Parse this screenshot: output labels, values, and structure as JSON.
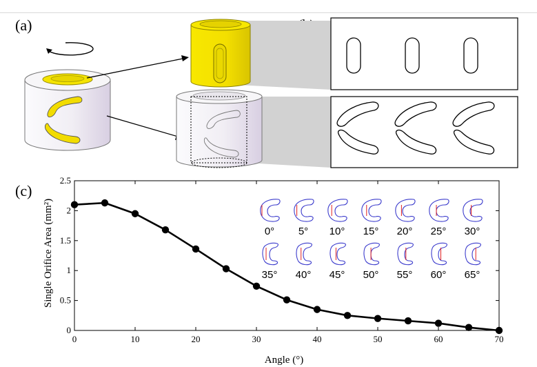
{
  "panels": {
    "a_label": "(a)",
    "b_label": "(b)",
    "c_label": "(c)"
  },
  "colors": {
    "sleeve_yellow": "#f5e400",
    "slot_yellow": "#f1dc00",
    "body_white": "#f4f2f6",
    "body_shade": "#dcd5e4",
    "callout_gray": "#d2d2d2",
    "orifice_outline": "#3a3acc",
    "orifice_marker": "#e02020",
    "curve": "#000000"
  },
  "chart_data": {
    "type": "line",
    "xlabel": "Angle (°)",
    "ylabel": "Single Orifice Area (mm²)",
    "xlim": [
      0,
      70
    ],
    "ylim": [
      0,
      2.5
    ],
    "xticks": [
      0,
      10,
      20,
      30,
      40,
      50,
      60,
      70
    ],
    "yticks": [
      0,
      0.5,
      1,
      1.5,
      2,
      2.5
    ],
    "xtick_labels": [
      "0",
      "10",
      "20",
      "30",
      "40",
      "50",
      "60",
      "70"
    ],
    "ytick_labels": [
      "0",
      "0.5",
      "1",
      "1.5",
      "2",
      "2.5"
    ],
    "grid": false,
    "series": [
      {
        "x": [
          0,
          5,
          10,
          15,
          20,
          25,
          30,
          35,
          40,
          45,
          50,
          55,
          60,
          65,
          70
        ],
        "y": [
          2.1,
          2.13,
          1.95,
          1.68,
          1.36,
          1.03,
          0.74,
          0.51,
          0.35,
          0.25,
          0.2,
          0.16,
          0.12,
          0.05,
          0.0
        ]
      }
    ],
    "inset_angle_labels": [
      "0°",
      "5°",
      "10°",
      "15°",
      "20°",
      "25°",
      "30°",
      "35°",
      "40°",
      "45°",
      "50°",
      "55°",
      "60°",
      "65°"
    ]
  }
}
